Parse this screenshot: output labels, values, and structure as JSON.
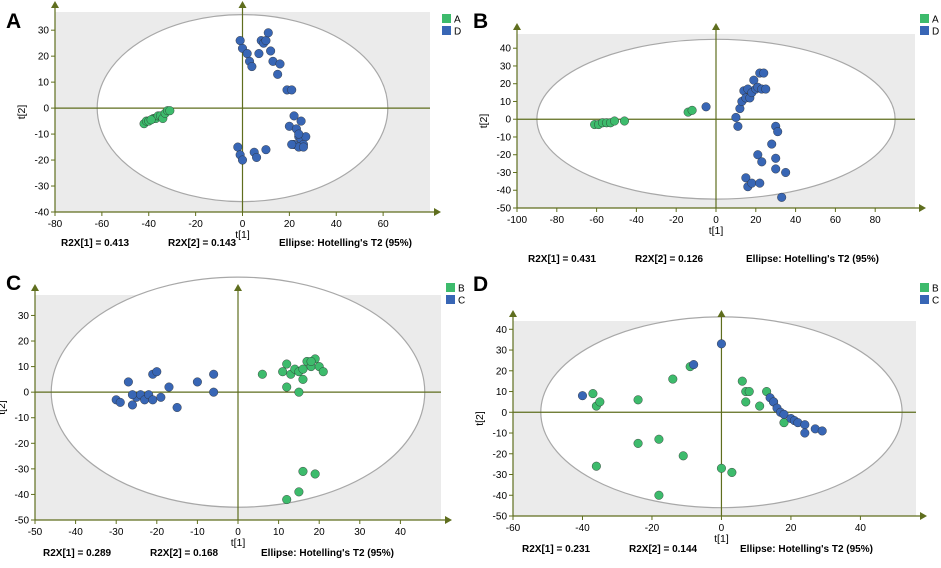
{
  "colors": {
    "green": "#3dbb6c",
    "blue": "#3866b5",
    "axis": "#5f6e1e",
    "plotbg": "#ebebeb",
    "ellipse": "#a8a8a8"
  },
  "chart_data": [
    {
      "panel": "A",
      "type": "scatter",
      "xlabel": "t[1]",
      "ylabel": "t[2]",
      "xlim": [
        -80,
        80
      ],
      "ylim": [
        -40,
        37
      ],
      "xticks": [
        -80,
        -60,
        -40,
        -20,
        0,
        20,
        40,
        60
      ],
      "yticks": [
        -40,
        -30,
        -20,
        -10,
        0,
        10,
        20,
        30
      ],
      "ellipse": {
        "rx": 62,
        "ry": 36,
        "label": "Ellipse: Hotelling's T2 (95%)"
      },
      "r2x1": "R2X[1] = 0.413",
      "r2x2": "R2X[2] = 0.143",
      "legend": [
        {
          "label": "A",
          "color": "green"
        },
        {
          "label": "D",
          "color": "blue"
        }
      ],
      "series": [
        {
          "name": "A",
          "color": "green",
          "points": [
            [
              -42,
              -6
            ],
            [
              -41,
              -5
            ],
            [
              -40,
              -5
            ],
            [
              -38,
              -4
            ],
            [
              -37,
              -4
            ],
            [
              -36,
              -3
            ],
            [
              -35,
              -3
            ],
            [
              -34,
              -4
            ],
            [
              -33,
              -2
            ],
            [
              -32,
              -1
            ],
            [
              -31,
              -1
            ],
            [
              -39,
              -4.5
            ]
          ]
        },
        {
          "name": "D",
          "color": "blue",
          "points": [
            [
              -1,
              26
            ],
            [
              0,
              23
            ],
            [
              2,
              21
            ],
            [
              3,
              18
            ],
            [
              4,
              16
            ],
            [
              7,
              21
            ],
            [
              8,
              26
            ],
            [
              9,
              25
            ],
            [
              10,
              26
            ],
            [
              11,
              29
            ],
            [
              12,
              22
            ],
            [
              13,
              18
            ],
            [
              15,
              13
            ],
            [
              16,
              17
            ],
            [
              19,
              7
            ],
            [
              21,
              7
            ],
            [
              20,
              -7
            ],
            [
              22,
              -3
            ],
            [
              23,
              -8
            ],
            [
              24,
              -11
            ],
            [
              25,
              -12
            ],
            [
              26,
              -14
            ],
            [
              27,
              -11
            ],
            [
              25,
              -5
            ],
            [
              24,
              -10
            ],
            [
              22,
              -14
            ],
            [
              24,
              -15
            ],
            [
              -2,
              -15
            ],
            [
              -1,
              -18
            ],
            [
              0,
              -20
            ],
            [
              5,
              -17
            ],
            [
              6,
              -19
            ],
            [
              10,
              -16
            ],
            [
              21,
              -14
            ],
            [
              26,
              -15
            ]
          ]
        }
      ]
    },
    {
      "panel": "B",
      "type": "scatter",
      "xlabel": "t[1]",
      "ylabel": "t[2]",
      "xlim": [
        -100,
        100
      ],
      "ylim": [
        -50,
        48
      ],
      "xticks": [
        -100,
        -80,
        -60,
        -40,
        -20,
        0,
        20,
        40,
        60,
        80
      ],
      "yticks": [
        -50,
        -40,
        -30,
        -20,
        -10,
        0,
        10,
        20,
        30,
        40
      ],
      "ellipse": {
        "rx": 90,
        "ry": 45,
        "label": "Ellipse: Hotelling's T2 (95%)"
      },
      "r2x1": "R2X[1] = 0.431",
      "r2x2": "R2X[2] = 0.126",
      "legend": [
        {
          "label": "A",
          "color": "green"
        },
        {
          "label": "D",
          "color": "blue"
        }
      ],
      "series": [
        {
          "name": "A",
          "color": "green",
          "points": [
            [
              -61,
              -3
            ],
            [
              -59,
              -3
            ],
            [
              -57,
              -2
            ],
            [
              -55,
              -2
            ],
            [
              -53,
              -2
            ],
            [
              -51,
              -1
            ],
            [
              -46,
              -1
            ],
            [
              -14,
              4
            ],
            [
              -12,
              5
            ]
          ]
        },
        {
          "name": "D",
          "color": "blue",
          "points": [
            [
              -5,
              7
            ],
            [
              10,
              1
            ],
            [
              11,
              -4
            ],
            [
              12,
              6
            ],
            [
              13,
              10
            ],
            [
              14,
              16
            ],
            [
              15,
              12
            ],
            [
              16,
              17
            ],
            [
              17,
              12
            ],
            [
              18,
              15
            ],
            [
              19,
              22
            ],
            [
              20,
              17
            ],
            [
              21,
              18
            ],
            [
              22,
              26
            ],
            [
              23,
              17
            ],
            [
              24,
              26
            ],
            [
              25,
              17
            ],
            [
              21,
              -20
            ],
            [
              23,
              -24
            ],
            [
              15,
              -33
            ],
            [
              16,
              -38
            ],
            [
              18,
              -36
            ],
            [
              22,
              -36
            ],
            [
              30,
              -4
            ],
            [
              31,
              -7
            ],
            [
              28,
              -14
            ],
            [
              30,
              -22
            ],
            [
              30,
              -28
            ],
            [
              35,
              -30
            ],
            [
              33,
              -44
            ]
          ]
        }
      ]
    },
    {
      "panel": "C",
      "type": "scatter",
      "xlabel": "t[1]",
      "ylabel": "t[2]",
      "xlim": [
        -50,
        50
      ],
      "ylim": [
        -50,
        38
      ],
      "xticks": [
        -50,
        -40,
        -30,
        -20,
        -10,
        0,
        10,
        20,
        30,
        40
      ],
      "yticks": [
        -50,
        -40,
        -30,
        -20,
        -10,
        0,
        10,
        20,
        30
      ],
      "ellipse": {
        "rx": 46,
        "ry": 45,
        "label": "Ellipse: Hotelling's T2 (95%)"
      },
      "r2x1": "R2X[1] = 0.289",
      "r2x2": "R2X[2] = 0.168",
      "legend": [
        {
          "label": "B",
          "color": "green"
        },
        {
          "label": "C",
          "color": "blue"
        }
      ],
      "series": [
        {
          "name": "B",
          "color": "green",
          "points": [
            [
              6,
              7
            ],
            [
              11,
              8
            ],
            [
              12,
              11
            ],
            [
              13,
              7
            ],
            [
              14,
              9
            ],
            [
              15,
              8
            ],
            [
              16,
              5
            ],
            [
              17,
              12
            ],
            [
              18,
              10
            ],
            [
              19,
              13
            ],
            [
              20,
              10
            ],
            [
              21,
              8
            ],
            [
              16,
              9
            ],
            [
              18,
              12
            ],
            [
              12,
              2
            ],
            [
              15,
              0
            ],
            [
              16,
              -31
            ],
            [
              19,
              -32
            ],
            [
              15,
              -39
            ],
            [
              12,
              -42
            ]
          ]
        },
        {
          "name": "C",
          "color": "blue",
          "points": [
            [
              -30,
              -3
            ],
            [
              -29,
              -4
            ],
            [
              -27,
              4
            ],
            [
              -26,
              -5
            ],
            [
              -25,
              -2
            ],
            [
              -24,
              -1
            ],
            [
              -23,
              -3
            ],
            [
              -22,
              -1
            ],
            [
              -21,
              -3
            ],
            [
              -19,
              -2
            ],
            [
              -17,
              2
            ],
            [
              -15,
              -6
            ],
            [
              -21,
              7
            ],
            [
              -20,
              8
            ],
            [
              -10,
              4
            ],
            [
              -6,
              7
            ],
            [
              -6,
              0
            ],
            [
              -26,
              -1
            ]
          ]
        }
      ]
    },
    {
      "panel": "D",
      "type": "scatter",
      "xlabel": "t[1]",
      "ylabel": "t[2]",
      "xlim": [
        -60,
        56
      ],
      "ylim": [
        -50,
        44
      ],
      "xticks": [
        -60,
        -40,
        -20,
        0,
        20,
        40
      ],
      "yticks": [
        -50,
        -40,
        -30,
        -20,
        -10,
        0,
        10,
        20,
        30,
        40
      ],
      "ellipse": {
        "rx": 52,
        "ry": 46,
        "label": "Ellipse: Hotelling's T2 (95%)"
      },
      "r2x1": "R2X[1] = 0.231",
      "r2x2": "R2X[2] = 0.144",
      "legend": [
        {
          "label": "B",
          "color": "green"
        },
        {
          "label": "C",
          "color": "blue"
        }
      ],
      "series": [
        {
          "name": "B",
          "color": "green",
          "points": [
            [
              -37,
              9
            ],
            [
              -36,
              3
            ],
            [
              -35,
              5
            ],
            [
              -24,
              6
            ],
            [
              -14,
              16
            ],
            [
              -9,
              22
            ],
            [
              -36,
              -26
            ],
            [
              -24,
              -15
            ],
            [
              -18,
              -13
            ],
            [
              -11,
              -21
            ],
            [
              -18,
              -40
            ],
            [
              6,
              15
            ],
            [
              7,
              10
            ],
            [
              7,
              5
            ],
            [
              8,
              10
            ],
            [
              11,
              3
            ],
            [
              13,
              10
            ],
            [
              15,
              5
            ],
            [
              18,
              -5
            ],
            [
              0,
              -27
            ],
            [
              3,
              -29
            ]
          ]
        },
        {
          "name": "C",
          "color": "blue",
          "points": [
            [
              -40,
              8
            ],
            [
              -8,
              23
            ],
            [
              0,
              33
            ],
            [
              14,
              7
            ],
            [
              15,
              5
            ],
            [
              16,
              2
            ],
            [
              17,
              0
            ],
            [
              18,
              -1
            ],
            [
              20,
              -3
            ],
            [
              21,
              -4
            ],
            [
              22,
              -5
            ],
            [
              24,
              -6
            ],
            [
              24,
              -10
            ],
            [
              27,
              -8
            ],
            [
              29,
              -9
            ]
          ]
        }
      ]
    }
  ]
}
